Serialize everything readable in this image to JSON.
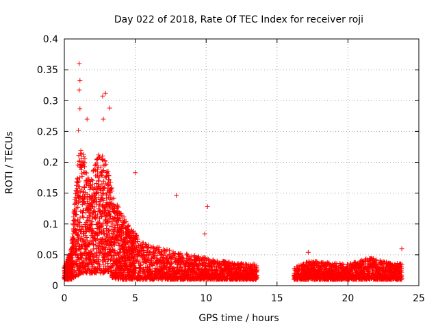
{
  "chart_data": {
    "type": "scatter",
    "title": "Day 022 of 2018, Rate Of TEC Index for receiver roji",
    "xlabel": "GPS time / hours",
    "ylabel": "ROTI / TECUs",
    "xlim": [
      0,
      25
    ],
    "ylim": [
      0,
      0.4
    ],
    "x_ticks": [
      "0",
      "5",
      "10",
      "15",
      "20",
      "25"
    ],
    "y_ticks": [
      "0",
      "0.05",
      "0.1",
      "0.15",
      "0.2",
      "0.25",
      "0.3",
      "0.35",
      "0.4"
    ],
    "grid": true,
    "marker": "+",
    "color": "#ff0000",
    "data_gap_hours": [
      13.6,
      16.2
    ],
    "notable_points": [
      {
        "x": 1.05,
        "y": 0.36
      },
      {
        "x": 1.1,
        "y": 0.333
      },
      {
        "x": 1.05,
        "y": 0.317
      },
      {
        "x": 2.9,
        "y": 0.312
      },
      {
        "x": 2.7,
        "y": 0.307
      },
      {
        "x": 3.2,
        "y": 0.288
      },
      {
        "x": 1.1,
        "y": 0.287
      },
      {
        "x": 2.75,
        "y": 0.27
      },
      {
        "x": 1.6,
        "y": 0.27
      },
      {
        "x": 1.0,
        "y": 0.252
      },
      {
        "x": 5.0,
        "y": 0.183
      },
      {
        "x": 7.9,
        "y": 0.146
      },
      {
        "x": 10.1,
        "y": 0.128
      },
      {
        "x": 9.9,
        "y": 0.084
      },
      {
        "x": 17.2,
        "y": 0.054
      },
      {
        "x": 23.8,
        "y": 0.06
      }
    ],
    "envelope": [
      {
        "x": 0.0,
        "lo": 0.01,
        "hi": 0.03
      },
      {
        "x": 0.5,
        "lo": 0.01,
        "hi": 0.06
      },
      {
        "x": 0.9,
        "lo": 0.015,
        "hi": 0.2
      },
      {
        "x": 1.2,
        "lo": 0.02,
        "hi": 0.23
      },
      {
        "x": 1.8,
        "lo": 0.02,
        "hi": 0.17
      },
      {
        "x": 2.5,
        "lo": 0.02,
        "hi": 0.22
      },
      {
        "x": 3.0,
        "lo": 0.02,
        "hi": 0.2
      },
      {
        "x": 3.5,
        "lo": 0.01,
        "hi": 0.14
      },
      {
        "x": 4.5,
        "lo": 0.01,
        "hi": 0.1
      },
      {
        "x": 5.5,
        "lo": 0.01,
        "hi": 0.07
      },
      {
        "x": 7.0,
        "lo": 0.01,
        "hi": 0.06
      },
      {
        "x": 9.0,
        "lo": 0.01,
        "hi": 0.05
      },
      {
        "x": 11.0,
        "lo": 0.01,
        "hi": 0.04
      },
      {
        "x": 13.5,
        "lo": 0.01,
        "hi": 0.035
      },
      {
        "x": 16.3,
        "lo": 0.01,
        "hi": 0.03
      },
      {
        "x": 17.2,
        "lo": 0.01,
        "hi": 0.04
      },
      {
        "x": 20.0,
        "lo": 0.01,
        "hi": 0.035
      },
      {
        "x": 21.5,
        "lo": 0.01,
        "hi": 0.045
      },
      {
        "x": 23.8,
        "lo": 0.01,
        "hi": 0.035
      }
    ]
  }
}
